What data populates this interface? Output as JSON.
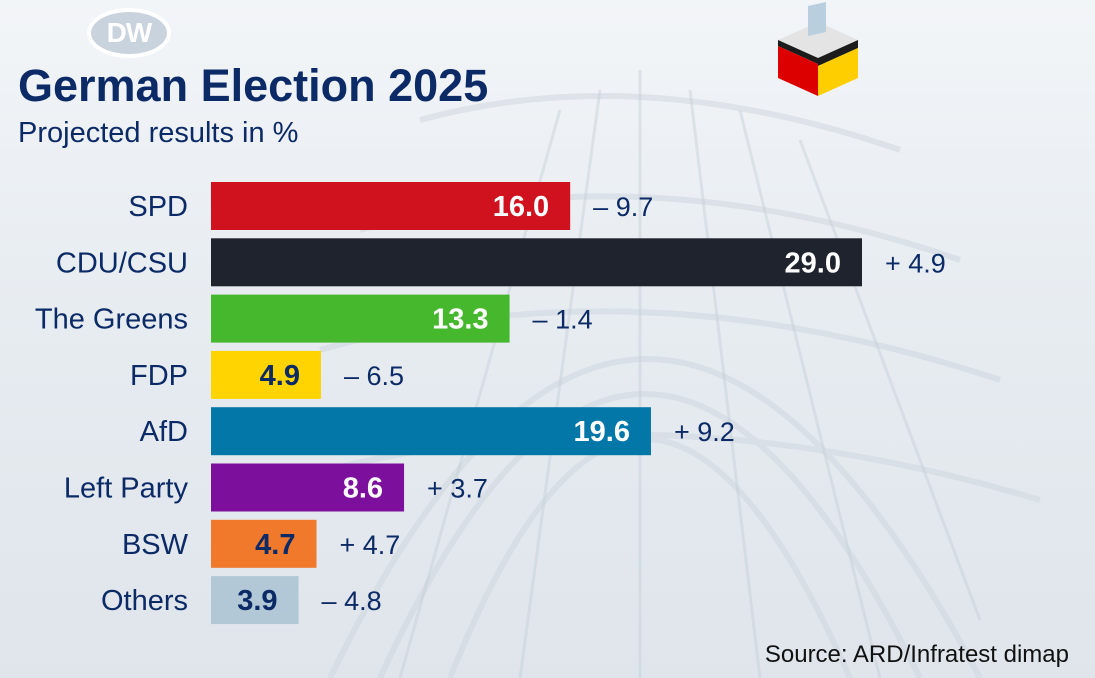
{
  "header": {
    "logo_text": "DW",
    "title": "German Election 2025",
    "subtitle": "Projected results in %"
  },
  "source": "Source: ARD/Infratest dimap",
  "colors": {
    "text_dark": "#0b2a66",
    "ballot_black": "#1c1c1c",
    "ballot_red": "#dd0000",
    "ballot_gold": "#ffce00"
  },
  "chart_data": {
    "type": "bar",
    "orientation": "horizontal",
    "title": "German Election 2025",
    "subtitle": "Projected results in %",
    "xlim": [
      0,
      29
    ],
    "categories": [
      "SPD",
      "CDU/CSU",
      "The Greens",
      "FDP",
      "AfD",
      "Left Party",
      "BSW",
      "Others"
    ],
    "values": [
      16.0,
      29.0,
      13.3,
      4.9,
      19.6,
      8.6,
      4.7,
      3.9
    ],
    "value_labels": [
      "16.0",
      "29.0",
      "13.3",
      "4.9",
      "19.6",
      "8.6",
      "4.7",
      "3.9"
    ],
    "change_labels": [
      "– 9.7",
      "+ 4.9",
      "– 1.4",
      "– 6.5",
      "+ 9.2",
      "+ 3.7",
      "+ 4.7",
      "– 4.8"
    ],
    "colors": [
      "#d0121f",
      "#1f232d",
      "#46b82e",
      "#ffd400",
      "#0477a9",
      "#7c0f9c",
      "#f0792b",
      "#b3c8d6"
    ],
    "value_label_colors": [
      "#ffffff",
      "#ffffff",
      "#ffffff",
      "#0b2a66",
      "#ffffff",
      "#ffffff",
      "#0b2a66",
      "#0b2a66"
    ],
    "grid": false,
    "legend": "none"
  }
}
